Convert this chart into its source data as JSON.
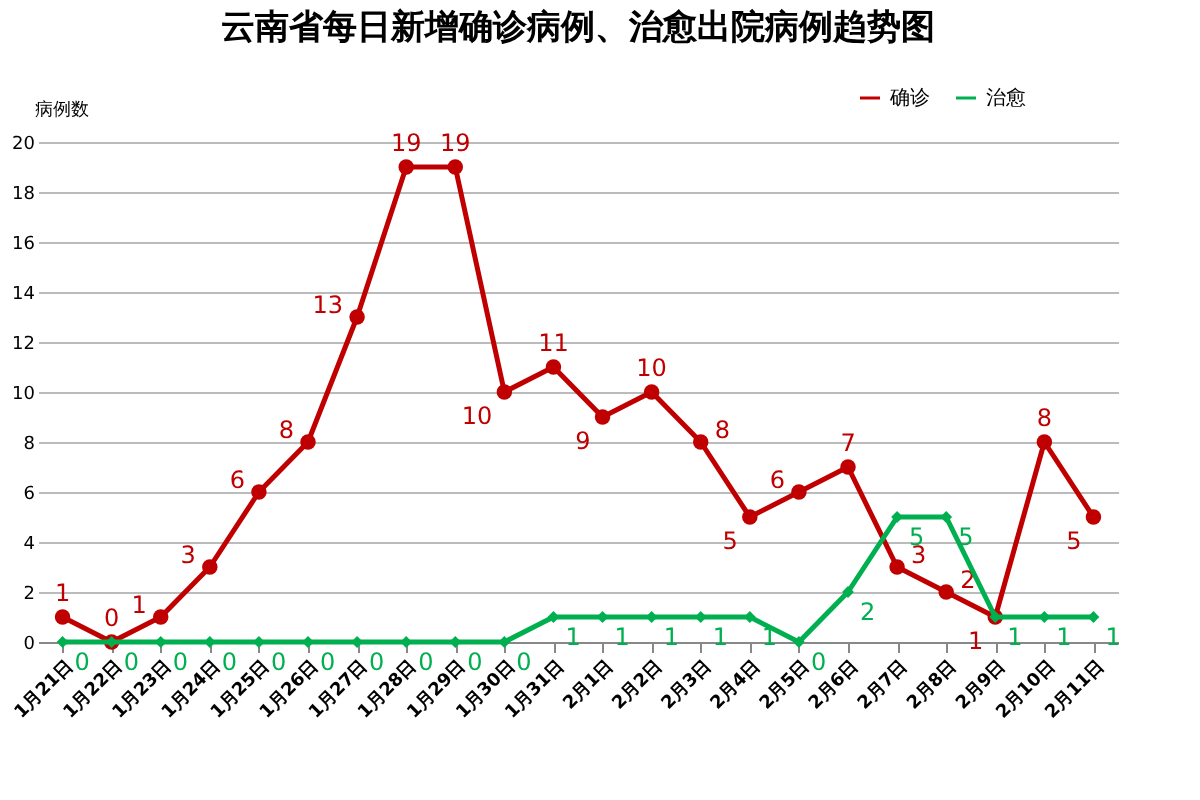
{
  "chart_data": {
    "type": "line",
    "title": "云南省每日新增确诊病例、治愈出院病例趋势图",
    "ylabel": "病例数",
    "categories": [
      "1月21日",
      "1月22日",
      "1月23日",
      "1月24日",
      "1月25日",
      "1月26日",
      "1月27日",
      "1月28日",
      "1月29日",
      "1月30日",
      "1月31日",
      "2月1日",
      "2月2日",
      "2月3日",
      "2月4日",
      "2月5日",
      "2月6日",
      "2月7日",
      "2月8日",
      "2月9日",
      "2月10日",
      "2月11日"
    ],
    "series": [
      {
        "name": "确诊",
        "color": "#c00000",
        "marker": "circle",
        "values": [
          1,
          0,
          1,
          3,
          6,
          8,
          13,
          19,
          19,
          10,
          11,
          9,
          10,
          8,
          5,
          6,
          7,
          3,
          2,
          1,
          8,
          5
        ]
      },
      {
        "name": "治愈",
        "color": "#00b050",
        "marker": "diamond",
        "values": [
          0,
          0,
          0,
          0,
          0,
          0,
          0,
          0,
          0,
          0,
          1,
          1,
          1,
          1,
          1,
          0,
          2,
          5,
          5,
          1,
          1,
          1
        ]
      }
    ],
    "ylim": [
      0,
      20
    ],
    "yticks": [
      0,
      2,
      4,
      6,
      8,
      10,
      12,
      14,
      16,
      18,
      20
    ],
    "grid": "y",
    "legend": "top right",
    "data_labels": true,
    "line_style": "solid"
  }
}
